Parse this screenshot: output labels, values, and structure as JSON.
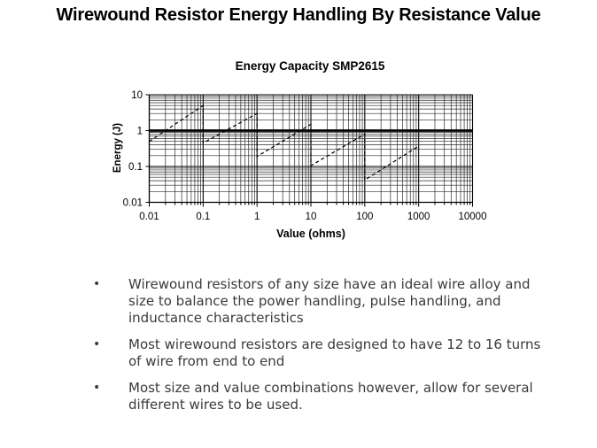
{
  "title": "Wirewound Resistor Energy Handling By Resistance Value",
  "bullets": [
    "Wirewound resistors of any size have an ideal wire alloy and size to balance the power handling, pulse handling, and inductance characteristics",
    "Most wirewound resistors are designed to have 12 to 16 turns of wire from end to end",
    "Most size and value combinations however, allow for several different wires to be used."
  ],
  "bullet_char": "•",
  "colors": {
    "line": "#000000",
    "grid_minor": "#2b2b2b",
    "grid_major": "#000000",
    "text": "#000000",
    "body_text": "#3a3a3a"
  },
  "chart_data": {
    "type": "line",
    "title": "Energy Capacity SMP2615",
    "xlabel": "Value (ohms)",
    "ylabel": "Energy (J)",
    "x_scale": "log",
    "y_scale": "log",
    "xlim": [
      0.01,
      10000
    ],
    "ylim": [
      0.01,
      10
    ],
    "x_ticks": [
      "0.01",
      "0.1",
      "1",
      "10",
      "100",
      "1000",
      "10000"
    ],
    "y_ticks": [
      "0.01",
      "0.1",
      "1",
      "10"
    ],
    "grid": "log minor gridlines on both axes, all black",
    "legend": "none",
    "series": [
      {
        "name": "energy capacity sawtooth (steps at each resistance decade)",
        "style": "dashed",
        "color": "#000000",
        "points": [
          [
            0.01,
            0.5
          ],
          [
            0.1,
            5.0
          ],
          [
            0.1,
            0.45
          ],
          [
            1,
            3.0
          ],
          [
            1,
            0.19
          ],
          [
            10,
            1.5
          ],
          [
            10,
            0.105
          ],
          [
            100,
            0.8
          ],
          [
            100,
            0.042
          ],
          [
            1000,
            0.37
          ]
        ]
      },
      {
        "name": "1 joule reference line",
        "style": "solid-bold",
        "color": "#000000",
        "points": [
          [
            0.01,
            1
          ],
          [
            10000,
            1
          ]
        ]
      }
    ]
  }
}
